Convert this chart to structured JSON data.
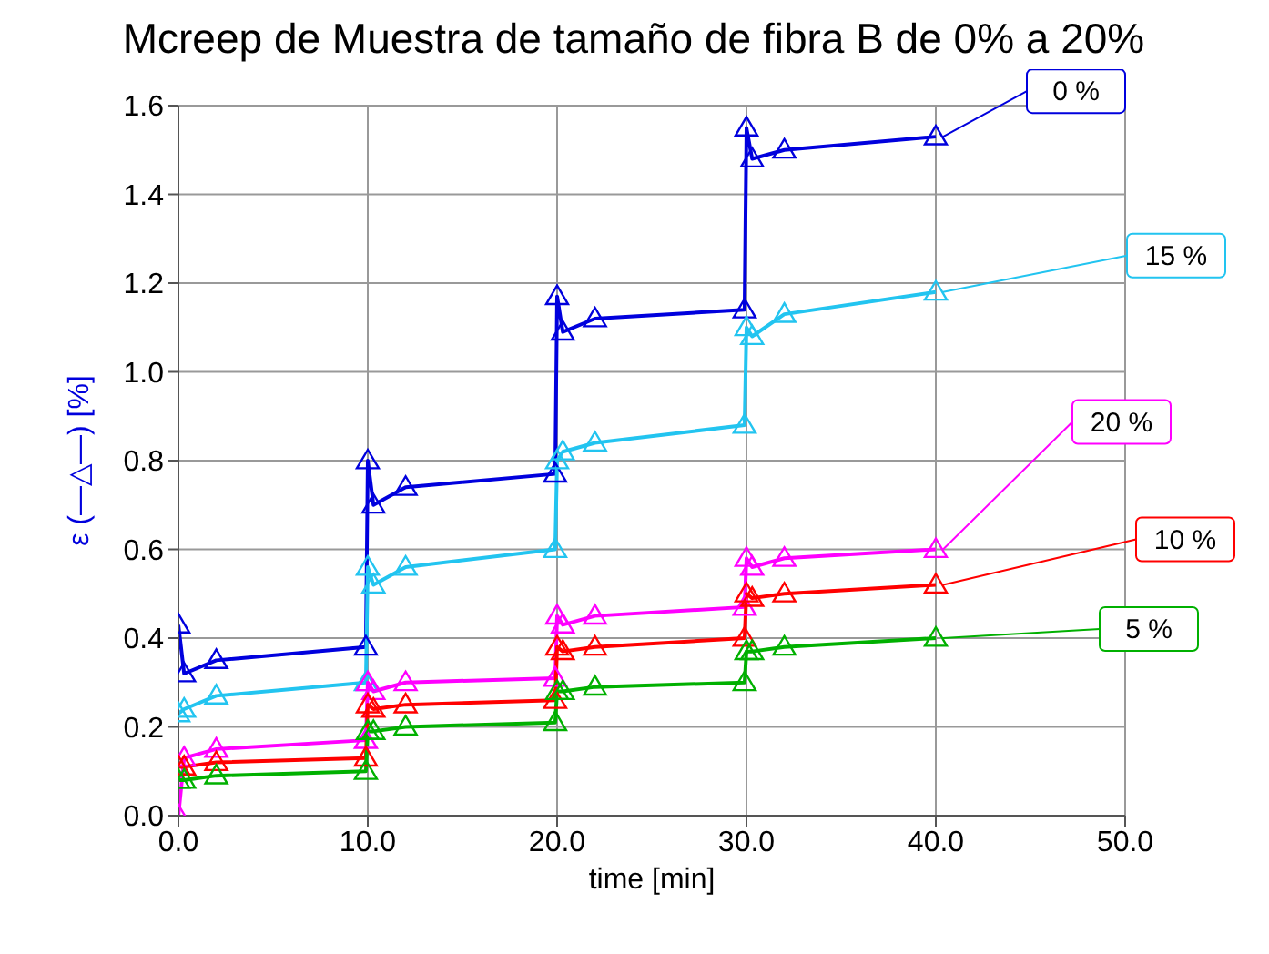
{
  "chart_data": {
    "type": "line",
    "title": "Mcreep de Muestra de tamaño de fibra B de 0% a 20%",
    "xlabel": "time [min]",
    "ylabel": "ε (—△—) [%]",
    "x": [
      0,
      0.3,
      2,
      9.9,
      10,
      10.3,
      12,
      19.9,
      20,
      20.3,
      22,
      29.9,
      30,
      30.3,
      32,
      40
    ],
    "series": [
      {
        "name": "0 %",
        "color": "#0000dd",
        "values": [
          0.43,
          0.32,
          0.35,
          0.38,
          0.8,
          0.7,
          0.74,
          0.77,
          1.17,
          1.09,
          1.12,
          1.14,
          1.55,
          1.48,
          1.5,
          1.53
        ]
      },
      {
        "name": "15 %",
        "color": "#22c4f0",
        "values": [
          0.23,
          0.24,
          0.27,
          0.3,
          0.56,
          0.52,
          0.56,
          0.6,
          0.8,
          0.82,
          0.84,
          0.88,
          1.1,
          1.08,
          1.13,
          1.18
        ]
      },
      {
        "name": "20 %",
        "color": "#ff00ff",
        "values": [
          0.0,
          0.13,
          0.15,
          0.17,
          0.3,
          0.28,
          0.3,
          0.31,
          0.45,
          0.43,
          0.45,
          0.47,
          0.58,
          0.56,
          0.58,
          0.6
        ]
      },
      {
        "name": "10 %",
        "color": "#ff0000",
        "values": [
          0.11,
          0.11,
          0.12,
          0.13,
          0.25,
          0.24,
          0.25,
          0.26,
          0.38,
          0.37,
          0.38,
          0.4,
          0.5,
          0.49,
          0.5,
          0.52
        ]
      },
      {
        "name": "5 %",
        "color": "#00b000",
        "values": [
          0.08,
          0.08,
          0.09,
          0.1,
          0.19,
          0.19,
          0.2,
          0.21,
          0.28,
          0.28,
          0.29,
          0.3,
          0.37,
          0.37,
          0.38,
          0.4
        ]
      }
    ],
    "xlim": [
      0,
      50
    ],
    "xticks": [
      {
        "value": 0,
        "label": "0.0"
      },
      {
        "value": 10,
        "label": "10.0"
      },
      {
        "value": 20,
        "label": "20.0"
      },
      {
        "value": 30,
        "label": "30.0"
      },
      {
        "value": 40,
        "label": "40.0"
      },
      {
        "value": 50,
        "label": "50.0"
      }
    ],
    "ylim": [
      0,
      1.6
    ],
    "yticks": [
      {
        "value": 0,
        "label": "0.0"
      },
      {
        "value": 0.2,
        "label": "0.2"
      },
      {
        "value": 0.4,
        "label": "0.4"
      },
      {
        "value": 0.6,
        "label": "0.6"
      },
      {
        "value": 0.8,
        "label": "0.8"
      },
      {
        "value": 1.0,
        "label": "1.0"
      },
      {
        "value": 1.2,
        "label": "1.2"
      },
      {
        "value": 1.4,
        "label": "1.4"
      },
      {
        "value": 1.6,
        "label": "1.6"
      }
    ],
    "grid": true,
    "marker": "triangle",
    "line_style": "solid",
    "legend": false
  }
}
